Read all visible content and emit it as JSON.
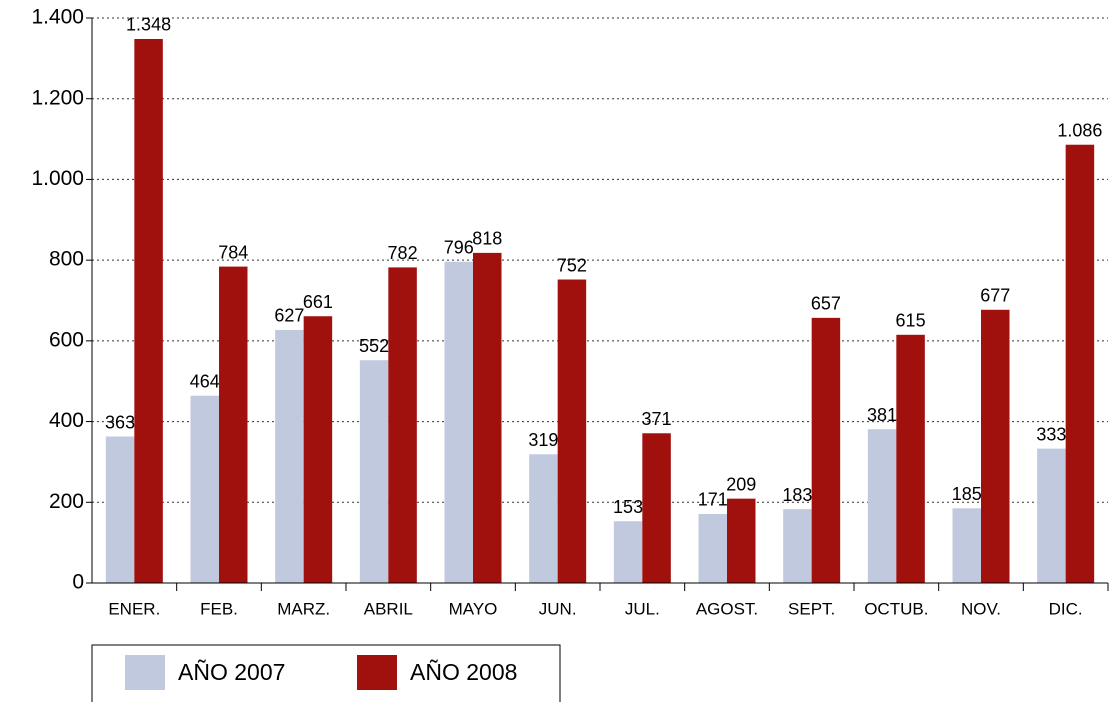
{
  "chart_data": {
    "type": "bar",
    "categories": [
      "ENER.",
      "FEB.",
      "MARZ.",
      "ABRIL",
      "MAYO",
      "JUN.",
      "JUL.",
      "AGOST.",
      "SEPT.",
      "OCTUB.",
      "NOV.",
      "DIC."
    ],
    "series": [
      {
        "name": "AÑO 2007",
        "color": "#c0c9de",
        "values": [
          363,
          464,
          627,
          552,
          796,
          319,
          153,
          171,
          183,
          381,
          185,
          333
        ]
      },
      {
        "name": "AÑO 2008",
        "color": "#a0110e",
        "values": [
          1348,
          784,
          661,
          782,
          818,
          752,
          371,
          209,
          657,
          615,
          677,
          1086
        ],
        "value_labels": [
          "1.348",
          "784",
          "661",
          "782",
          "818",
          "752",
          "371",
          "209",
          "657",
          "615",
          "677",
          "1.086"
        ]
      }
    ],
    "ylim": [
      0,
      1400
    ],
    "yticks": [
      0,
      200,
      400,
      600,
      800,
      {
        "value": 1000,
        "label": "1.000"
      },
      {
        "value": 1200,
        "label": "1.200"
      },
      {
        "value": 1400,
        "label": "1.400"
      }
    ],
    "grid": true,
    "legend": "bottom"
  }
}
